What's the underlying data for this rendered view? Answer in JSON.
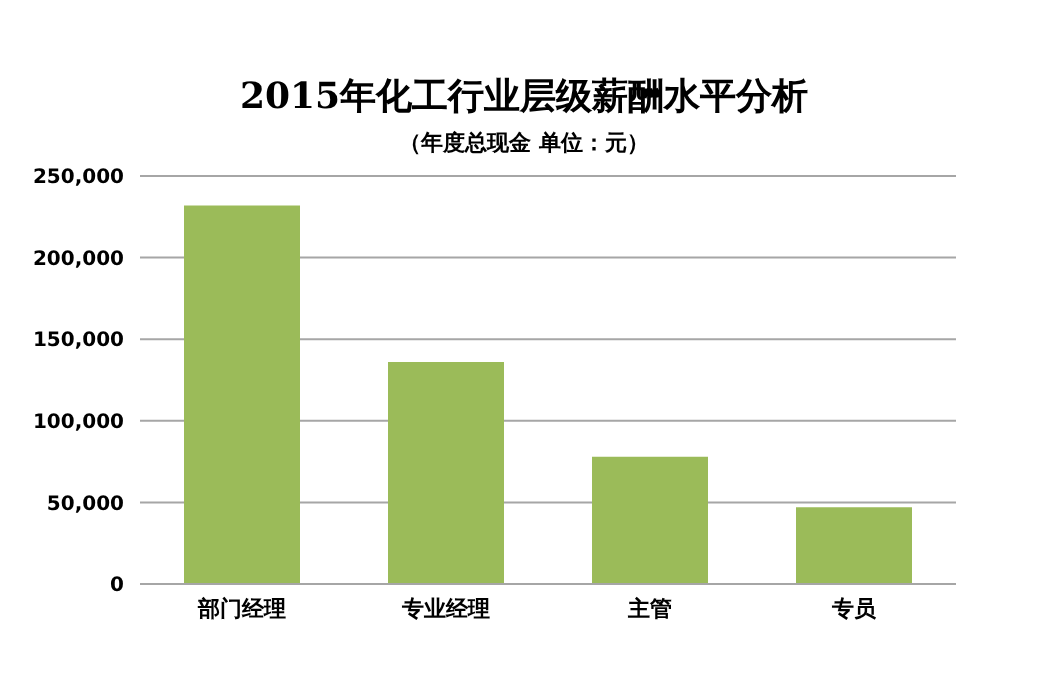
{
  "chart_data": {
    "type": "bar",
    "title": "2015年化工行业层级薪酬水平分析",
    "subtitle": "（年度总现金 单位：元）",
    "categories": [
      "部门经理",
      "专业经理",
      "主管",
      "专员"
    ],
    "values": [
      232000,
      136000,
      78000,
      47000
    ],
    "color": "#9bbb59",
    "ylim": [
      0,
      250000
    ],
    "yticks": [
      0,
      {
        "value": 50000,
        "label": "50,000"
      },
      {
        "value": 100000,
        "label": "100,000"
      },
      {
        "value": 150000,
        "label": "150,000"
      },
      {
        "value": 200000,
        "label": "200,000"
      },
      {
        "value": 250000,
        "label": "250,000"
      }
    ],
    "grid": "y"
  }
}
